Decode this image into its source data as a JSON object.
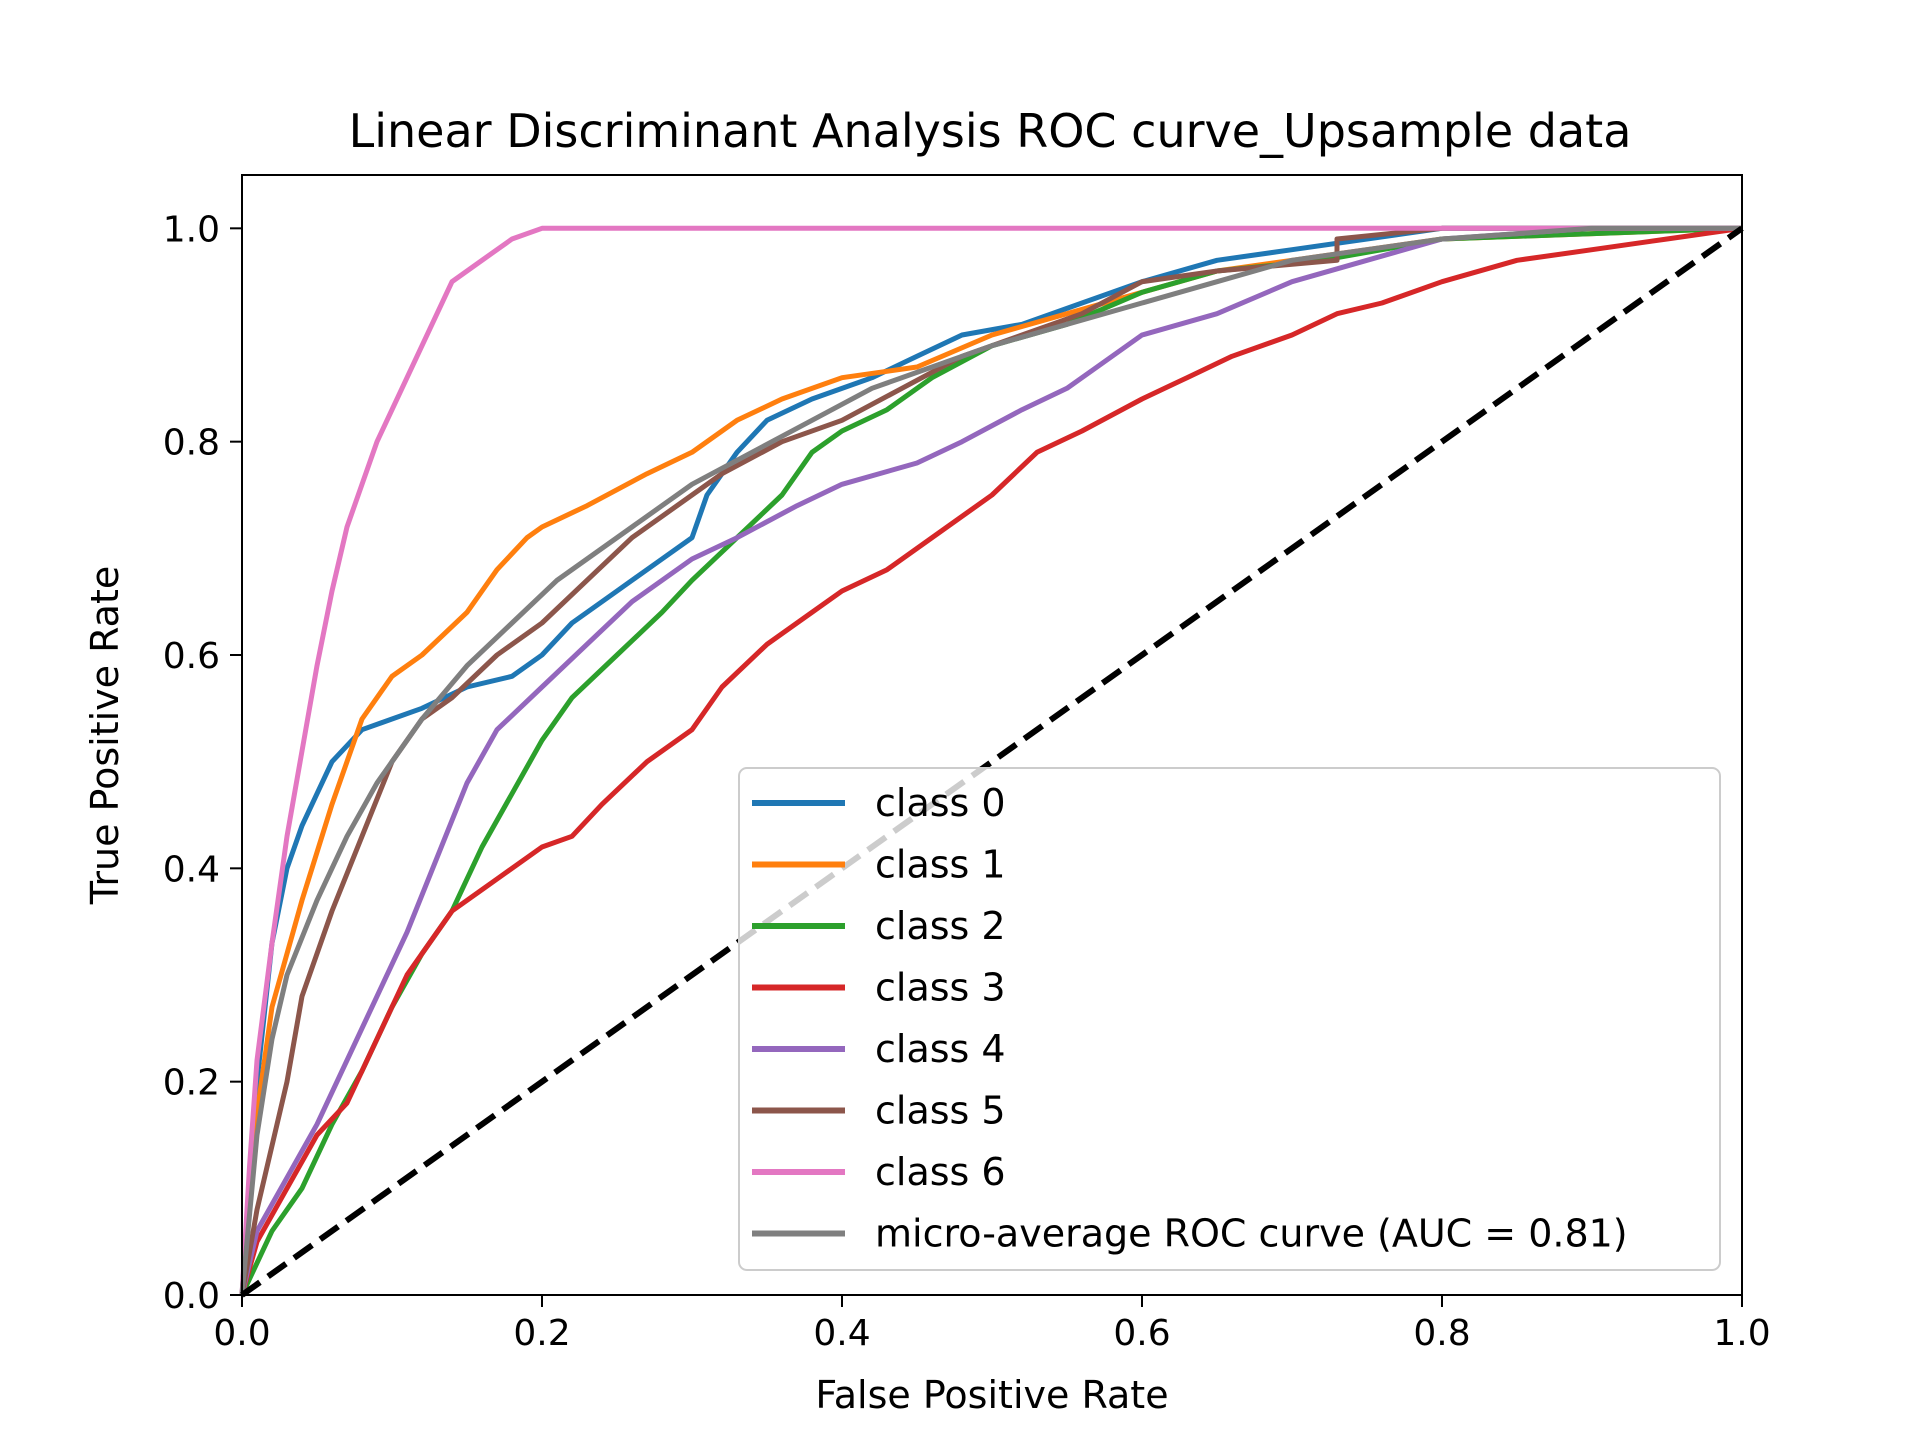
{
  "chart_data": {
    "type": "line",
    "title": "Linear Discriminant Analysis ROC curve_Upsample data",
    "xlabel": "False Positive Rate",
    "ylabel": "True Positive Rate",
    "xlim": [
      0.0,
      1.0
    ],
    "ylim": [
      0.0,
      1.05
    ],
    "xticks": [
      "0.0",
      "0.2",
      "0.4",
      "0.6",
      "0.8",
      "1.0"
    ],
    "yticks": [
      "0.0",
      "0.2",
      "0.4",
      "0.6",
      "0.8",
      "1.0"
    ],
    "grid": false,
    "legend_position": "lower-right",
    "series": [
      {
        "name": "class 0",
        "color": "#1f77b4",
        "points": [
          [
            0,
            0
          ],
          [
            0.01,
            0.2
          ],
          [
            0.02,
            0.33
          ],
          [
            0.03,
            0.4
          ],
          [
            0.04,
            0.44
          ],
          [
            0.05,
            0.47
          ],
          [
            0.06,
            0.5
          ],
          [
            0.08,
            0.53
          ],
          [
            0.1,
            0.54
          ],
          [
            0.12,
            0.55
          ],
          [
            0.15,
            0.57
          ],
          [
            0.18,
            0.58
          ],
          [
            0.2,
            0.6
          ],
          [
            0.22,
            0.63
          ],
          [
            0.25,
            0.66
          ],
          [
            0.28,
            0.69
          ],
          [
            0.3,
            0.71
          ],
          [
            0.31,
            0.75
          ],
          [
            0.33,
            0.79
          ],
          [
            0.35,
            0.82
          ],
          [
            0.38,
            0.84
          ],
          [
            0.42,
            0.86
          ],
          [
            0.45,
            0.88
          ],
          [
            0.48,
            0.9
          ],
          [
            0.52,
            0.91
          ],
          [
            0.56,
            0.93
          ],
          [
            0.6,
            0.95
          ],
          [
            0.65,
            0.97
          ],
          [
            0.7,
            0.98
          ],
          [
            0.75,
            0.99
          ],
          [
            0.8,
            1.0
          ],
          [
            1.0,
            1.0
          ]
        ]
      },
      {
        "name": "class 1",
        "color": "#ff7f0e",
        "points": [
          [
            0,
            0
          ],
          [
            0.01,
            0.17
          ],
          [
            0.02,
            0.27
          ],
          [
            0.04,
            0.37
          ],
          [
            0.06,
            0.46
          ],
          [
            0.08,
            0.54
          ],
          [
            0.1,
            0.58
          ],
          [
            0.12,
            0.6
          ],
          [
            0.15,
            0.64
          ],
          [
            0.17,
            0.68
          ],
          [
            0.19,
            0.71
          ],
          [
            0.2,
            0.72
          ],
          [
            0.23,
            0.74
          ],
          [
            0.27,
            0.77
          ],
          [
            0.3,
            0.79
          ],
          [
            0.33,
            0.82
          ],
          [
            0.36,
            0.84
          ],
          [
            0.4,
            0.86
          ],
          [
            0.45,
            0.87
          ],
          [
            0.5,
            0.9
          ],
          [
            0.55,
            0.92
          ],
          [
            0.6,
            0.94
          ],
          [
            0.65,
            0.96
          ],
          [
            0.7,
            0.97
          ],
          [
            0.8,
            0.99
          ],
          [
            1.0,
            1.0
          ]
        ]
      },
      {
        "name": "class 2",
        "color": "#2ca02c",
        "points": [
          [
            0,
            0
          ],
          [
            0.02,
            0.06
          ],
          [
            0.04,
            0.1
          ],
          [
            0.06,
            0.16
          ],
          [
            0.08,
            0.21
          ],
          [
            0.1,
            0.27
          ],
          [
            0.12,
            0.32
          ],
          [
            0.14,
            0.36
          ],
          [
            0.16,
            0.42
          ],
          [
            0.18,
            0.47
          ],
          [
            0.2,
            0.52
          ],
          [
            0.22,
            0.56
          ],
          [
            0.25,
            0.6
          ],
          [
            0.28,
            0.64
          ],
          [
            0.3,
            0.67
          ],
          [
            0.33,
            0.71
          ],
          [
            0.36,
            0.75
          ],
          [
            0.38,
            0.79
          ],
          [
            0.4,
            0.81
          ],
          [
            0.43,
            0.83
          ],
          [
            0.46,
            0.86
          ],
          [
            0.5,
            0.89
          ],
          [
            0.55,
            0.91
          ],
          [
            0.6,
            0.94
          ],
          [
            0.65,
            0.96
          ],
          [
            0.72,
            0.97
          ],
          [
            0.8,
            0.99
          ],
          [
            1.0,
            1.0
          ]
        ]
      },
      {
        "name": "class 3",
        "color": "#d62728",
        "points": [
          [
            0,
            0
          ],
          [
            0.01,
            0.05
          ],
          [
            0.03,
            0.1
          ],
          [
            0.05,
            0.15
          ],
          [
            0.07,
            0.18
          ],
          [
            0.09,
            0.24
          ],
          [
            0.11,
            0.3
          ],
          [
            0.14,
            0.36
          ],
          [
            0.17,
            0.39
          ],
          [
            0.2,
            0.42
          ],
          [
            0.22,
            0.43
          ],
          [
            0.24,
            0.46
          ],
          [
            0.27,
            0.5
          ],
          [
            0.3,
            0.53
          ],
          [
            0.32,
            0.57
          ],
          [
            0.35,
            0.61
          ],
          [
            0.38,
            0.64
          ],
          [
            0.4,
            0.66
          ],
          [
            0.43,
            0.68
          ],
          [
            0.46,
            0.71
          ],
          [
            0.5,
            0.75
          ],
          [
            0.53,
            0.79
          ],
          [
            0.56,
            0.81
          ],
          [
            0.6,
            0.84
          ],
          [
            0.63,
            0.86
          ],
          [
            0.66,
            0.88
          ],
          [
            0.7,
            0.9
          ],
          [
            0.73,
            0.92
          ],
          [
            0.76,
            0.93
          ],
          [
            0.8,
            0.95
          ],
          [
            0.85,
            0.97
          ],
          [
            0.9,
            0.98
          ],
          [
            0.95,
            0.99
          ],
          [
            1.0,
            1.0
          ]
        ]
      },
      {
        "name": "class 4",
        "color": "#9467bd",
        "points": [
          [
            0,
            0
          ],
          [
            0.01,
            0.06
          ],
          [
            0.03,
            0.11
          ],
          [
            0.05,
            0.16
          ],
          [
            0.07,
            0.22
          ],
          [
            0.09,
            0.28
          ],
          [
            0.11,
            0.34
          ],
          [
            0.13,
            0.41
          ],
          [
            0.15,
            0.48
          ],
          [
            0.17,
            0.53
          ],
          [
            0.2,
            0.57
          ],
          [
            0.23,
            0.61
          ],
          [
            0.26,
            0.65
          ],
          [
            0.3,
            0.69
          ],
          [
            0.33,
            0.71
          ],
          [
            0.37,
            0.74
          ],
          [
            0.4,
            0.76
          ],
          [
            0.45,
            0.78
          ],
          [
            0.48,
            0.8
          ],
          [
            0.52,
            0.83
          ],
          [
            0.55,
            0.85
          ],
          [
            0.57,
            0.87
          ],
          [
            0.6,
            0.9
          ],
          [
            0.65,
            0.92
          ],
          [
            0.7,
            0.95
          ],
          [
            0.75,
            0.97
          ],
          [
            0.8,
            0.99
          ],
          [
            0.9,
            1.0
          ],
          [
            1.0,
            1.0
          ]
        ]
      },
      {
        "name": "class 5",
        "color": "#8c564b",
        "points": [
          [
            0,
            0
          ],
          [
            0.01,
            0.08
          ],
          [
            0.02,
            0.14
          ],
          [
            0.03,
            0.2
          ],
          [
            0.04,
            0.28
          ],
          [
            0.06,
            0.36
          ],
          [
            0.08,
            0.43
          ],
          [
            0.1,
            0.5
          ],
          [
            0.12,
            0.54
          ],
          [
            0.14,
            0.56
          ],
          [
            0.17,
            0.6
          ],
          [
            0.2,
            0.63
          ],
          [
            0.23,
            0.67
          ],
          [
            0.26,
            0.71
          ],
          [
            0.29,
            0.74
          ],
          [
            0.32,
            0.77
          ],
          [
            0.36,
            0.8
          ],
          [
            0.4,
            0.82
          ],
          [
            0.44,
            0.85
          ],
          [
            0.48,
            0.88
          ],
          [
            0.52,
            0.9
          ],
          [
            0.56,
            0.92
          ],
          [
            0.6,
            0.95
          ],
          [
            0.65,
            0.96
          ],
          [
            0.73,
            0.97
          ],
          [
            0.73,
            0.99
          ],
          [
            0.8,
            1.0
          ],
          [
            1.0,
            1.0
          ]
        ]
      },
      {
        "name": "class 6",
        "color": "#e377c2",
        "points": [
          [
            0,
            0
          ],
          [
            0.005,
            0.12
          ],
          [
            0.01,
            0.22
          ],
          [
            0.02,
            0.33
          ],
          [
            0.03,
            0.43
          ],
          [
            0.04,
            0.51
          ],
          [
            0.05,
            0.59
          ],
          [
            0.06,
            0.66
          ],
          [
            0.07,
            0.72
          ],
          [
            0.08,
            0.76
          ],
          [
            0.09,
            0.8
          ],
          [
            0.1,
            0.83
          ],
          [
            0.11,
            0.86
          ],
          [
            0.12,
            0.89
          ],
          [
            0.13,
            0.92
          ],
          [
            0.14,
            0.95
          ],
          [
            0.16,
            0.97
          ],
          [
            0.18,
            0.99
          ],
          [
            0.2,
            1.0
          ],
          [
            1.0,
            1.0
          ]
        ]
      },
      {
        "name": "micro-average ROC curve (AUC = 0.81)",
        "color": "#7f7f7f",
        "points": [
          [
            0,
            0
          ],
          [
            0.01,
            0.15
          ],
          [
            0.02,
            0.24
          ],
          [
            0.03,
            0.3
          ],
          [
            0.05,
            0.37
          ],
          [
            0.07,
            0.43
          ],
          [
            0.09,
            0.48
          ],
          [
            0.12,
            0.54
          ],
          [
            0.15,
            0.59
          ],
          [
            0.18,
            0.63
          ],
          [
            0.21,
            0.67
          ],
          [
            0.24,
            0.7
          ],
          [
            0.27,
            0.73
          ],
          [
            0.3,
            0.76
          ],
          [
            0.34,
            0.79
          ],
          [
            0.38,
            0.82
          ],
          [
            0.42,
            0.85
          ],
          [
            0.46,
            0.87
          ],
          [
            0.5,
            0.89
          ],
          [
            0.55,
            0.91
          ],
          [
            0.6,
            0.93
          ],
          [
            0.65,
            0.95
          ],
          [
            0.7,
            0.97
          ],
          [
            0.8,
            0.99
          ],
          [
            0.9,
            1.0
          ],
          [
            1.0,
            1.0
          ]
        ]
      }
    ],
    "reference_line": {
      "color": "#000000",
      "points": [
        [
          0,
          0
        ],
        [
          1,
          1
        ]
      ]
    }
  }
}
